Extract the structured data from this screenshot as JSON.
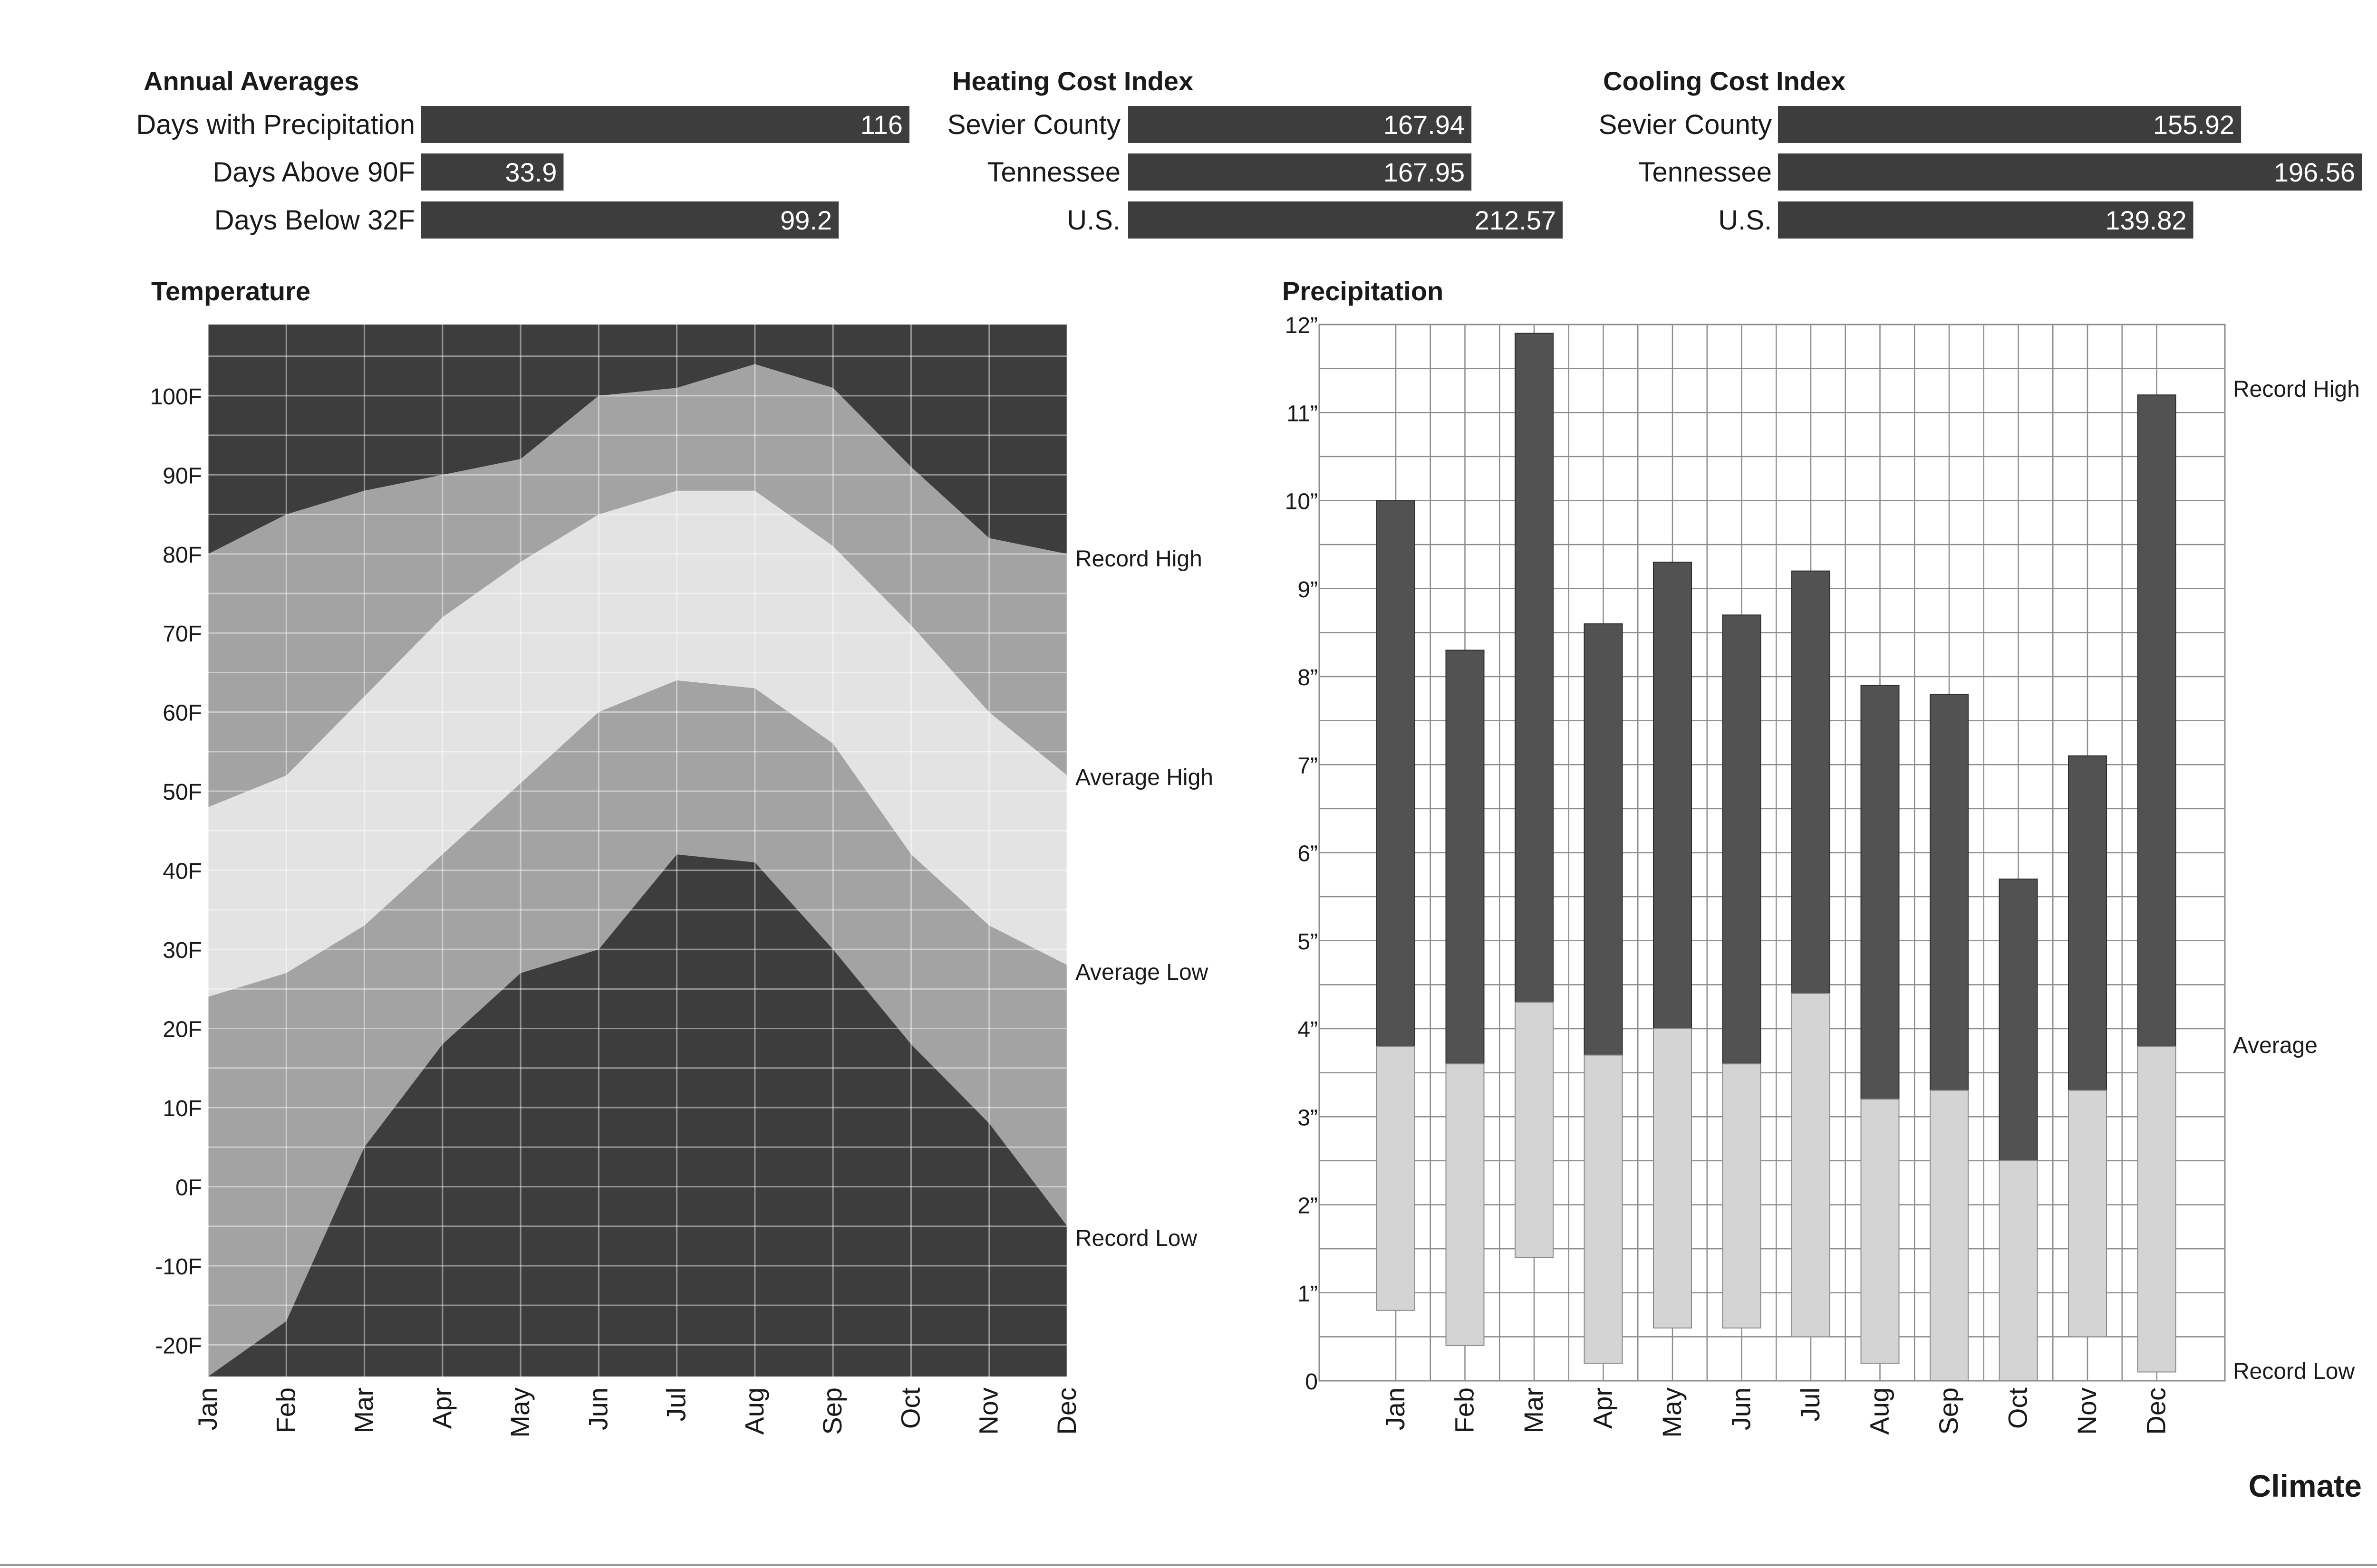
{
  "page_title": "Climate",
  "colors": {
    "bar_dark": "#3d3d3d",
    "record_band": "#a3a3a3",
    "average_band": "#e3e3e3",
    "precip_record_high": "#525252",
    "precip_average": "#d4d4d4",
    "grid": "#8c8c8c"
  },
  "chart_data": [
    {
      "type": "bar",
      "title": "Annual Averages",
      "orientation": "horizontal",
      "categories": [
        "Days with Precipitation",
        "Days Above 90F",
        "Days Below 32F"
      ],
      "values": [
        116,
        33.9,
        99.2
      ],
      "value_labels": [
        "116",
        "33.9",
        "99.2"
      ],
      "xlim": [
        0,
        116
      ]
    },
    {
      "type": "bar",
      "title": "Heating Cost Index",
      "orientation": "horizontal",
      "categories": [
        "Sevier County",
        "Tennessee",
        "U.S."
      ],
      "values": [
        167.94,
        167.95,
        212.57
      ],
      "value_labels": [
        "167.94",
        "167.95",
        "212.57"
      ],
      "xlim": [
        0,
        212.57
      ]
    },
    {
      "type": "bar",
      "title": "Cooling Cost Index",
      "orientation": "horizontal",
      "categories": [
        "Sevier County",
        "Tennessee",
        "U.S."
      ],
      "values": [
        155.92,
        196.56,
        139.82
      ],
      "value_labels": [
        "155.92",
        "196.56",
        "139.82"
      ],
      "xlim": [
        0,
        196.56
      ]
    },
    {
      "type": "area",
      "title": "Temperature",
      "x": [
        "Jan",
        "Feb",
        "Mar",
        "Apr",
        "May",
        "Jun",
        "Jul",
        "Aug",
        "Sep",
        "Oct",
        "Nov",
        "Dec"
      ],
      "series": [
        {
          "name": "Record High",
          "values": [
            80,
            85,
            88,
            90,
            92,
            100,
            101,
            104,
            101,
            91,
            82,
            80
          ]
        },
        {
          "name": "Average High",
          "values": [
            48,
            52,
            62,
            72,
            79,
            85,
            88,
            88,
            81,
            71,
            60,
            52
          ]
        },
        {
          "name": "Average Low",
          "values": [
            24,
            27,
            33,
            42,
            51,
            60,
            64,
            63,
            56,
            42,
            33,
            28
          ]
        },
        {
          "name": "Record Low",
          "values": [
            -24,
            -17,
            5,
            18,
            27,
            30,
            42,
            41,
            30,
            18,
            8,
            -5
          ]
        }
      ],
      "ylim": [
        -24,
        109
      ],
      "yticks": [
        -20,
        -10,
        0,
        10,
        20,
        30,
        40,
        50,
        60,
        70,
        80,
        90,
        100
      ],
      "ytick_labels": [
        "-20F",
        "-10F",
        "0F",
        "10F",
        "20F",
        "30F",
        "40F",
        "50F",
        "60F",
        "70F",
        "80F",
        "90F",
        "100F"
      ],
      "grid": true,
      "legend": "right"
    },
    {
      "type": "bar",
      "title": "Precipitation",
      "categories": [
        "Jan",
        "Feb",
        "Mar",
        "Apr",
        "May",
        "Jun",
        "Jul",
        "Aug",
        "Sep",
        "Oct",
        "Nov",
        "Dec"
      ],
      "series": [
        {
          "name": "Record High",
          "values": [
            10.0,
            8.3,
            11.9,
            8.6,
            9.3,
            8.7,
            9.2,
            7.9,
            7.8,
            5.7,
            7.1,
            11.2
          ]
        },
        {
          "name": "Average",
          "values": [
            3.8,
            3.6,
            4.3,
            3.7,
            4.0,
            3.6,
            4.4,
            3.2,
            3.3,
            2.5,
            3.3,
            3.8
          ]
        },
        {
          "name": "Record Low",
          "values": [
            0.8,
            0.4,
            1.4,
            0.2,
            0.6,
            0.6,
            0.5,
            0.2,
            0.0,
            0.0,
            0.5,
            0.1
          ]
        }
      ],
      "ylim": [
        0,
        12
      ],
      "yticks": [
        0,
        1,
        2,
        3,
        4,
        5,
        6,
        7,
        8,
        9,
        10,
        11,
        12
      ],
      "ytick_labels": [
        "0",
        "1”",
        "2”",
        "3”",
        "4”",
        "5”",
        "6”",
        "7”",
        "8”",
        "9”",
        "10”",
        "11”",
        "12”"
      ],
      "grid": true,
      "legend": "right"
    }
  ]
}
